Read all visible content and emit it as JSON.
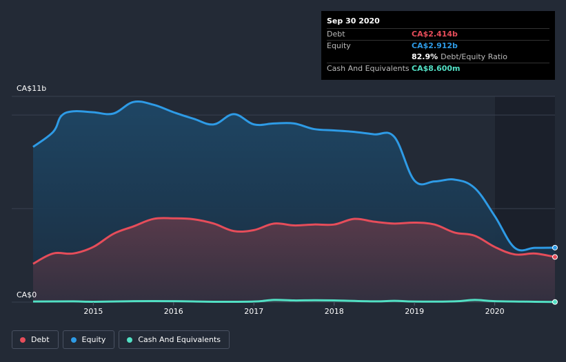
{
  "tooltip": {
    "date": "Sep 30 2020",
    "rows": [
      {
        "label": "Debt",
        "value": "CA$2.414b",
        "color": "#e64d5a"
      },
      {
        "label": "Equity",
        "value": "CA$2.912b",
        "color": "#2e9be6"
      }
    ],
    "ratio_value": "82.9%",
    "ratio_label": "Debt/Equity Ratio",
    "cash": {
      "label": "Cash And Equivalents",
      "value": "CA$8.600m",
      "color": "#52e0c4"
    }
  },
  "legend": [
    {
      "label": "Debt",
      "color": "#e64d5a"
    },
    {
      "label": "Equity",
      "color": "#2e9be6"
    },
    {
      "label": "Cash And Equivalents",
      "color": "#52e0c4"
    }
  ],
  "chart_data": {
    "type": "area",
    "ylabel_top": "CA$11b",
    "ylabel_bottom": "CA$0",
    "ylim": [
      0,
      11
    ],
    "xlim": [
      2014.25,
      2020.75
    ],
    "x_ticks": [
      "2015",
      "2016",
      "2017",
      "2018",
      "2019",
      "2020"
    ],
    "x_tick_values": [
      2015,
      2016,
      2017,
      2018,
      2019,
      2020
    ],
    "grid": true,
    "units": "CA$ billions",
    "series": [
      {
        "name": "Equity",
        "color": "#2e9be6",
        "points": [
          [
            2014.25,
            8.3
          ],
          [
            2014.5,
            9.1
          ],
          [
            2014.6,
            9.95
          ],
          [
            2014.75,
            10.2
          ],
          [
            2015.0,
            10.15
          ],
          [
            2015.25,
            10.08
          ],
          [
            2015.5,
            10.7
          ],
          [
            2015.75,
            10.55
          ],
          [
            2016.0,
            10.15
          ],
          [
            2016.25,
            9.8
          ],
          [
            2016.5,
            9.5
          ],
          [
            2016.75,
            10.05
          ],
          [
            2017.0,
            9.5
          ],
          [
            2017.25,
            9.55
          ],
          [
            2017.5,
            9.55
          ],
          [
            2017.75,
            9.25
          ],
          [
            2018.0,
            9.18
          ],
          [
            2018.25,
            9.1
          ],
          [
            2018.5,
            8.97
          ],
          [
            2018.75,
            8.83
          ],
          [
            2019.0,
            6.5
          ],
          [
            2019.25,
            6.45
          ],
          [
            2019.5,
            6.55
          ],
          [
            2019.75,
            6.1
          ],
          [
            2020.0,
            4.6
          ],
          [
            2020.25,
            2.9
          ],
          [
            2020.5,
            2.9
          ],
          [
            2020.75,
            2.912
          ]
        ]
      },
      {
        "name": "Debt",
        "color": "#e64d5a",
        "points": [
          [
            2014.25,
            2.05
          ],
          [
            2014.5,
            2.6
          ],
          [
            2014.75,
            2.6
          ],
          [
            2015.0,
            2.95
          ],
          [
            2015.25,
            3.65
          ],
          [
            2015.5,
            4.05
          ],
          [
            2015.75,
            4.45
          ],
          [
            2016.0,
            4.48
          ],
          [
            2016.25,
            4.43
          ],
          [
            2016.5,
            4.2
          ],
          [
            2016.75,
            3.8
          ],
          [
            2017.0,
            3.85
          ],
          [
            2017.25,
            4.2
          ],
          [
            2017.5,
            4.1
          ],
          [
            2017.75,
            4.15
          ],
          [
            2018.0,
            4.15
          ],
          [
            2018.25,
            4.45
          ],
          [
            2018.5,
            4.3
          ],
          [
            2018.75,
            4.2
          ],
          [
            2019.0,
            4.25
          ],
          [
            2019.25,
            4.15
          ],
          [
            2019.5,
            3.72
          ],
          [
            2019.75,
            3.55
          ],
          [
            2020.0,
            2.95
          ],
          [
            2020.25,
            2.55
          ],
          [
            2020.5,
            2.6
          ],
          [
            2020.75,
            2.414
          ]
        ]
      },
      {
        "name": "Cash And Equivalents",
        "color": "#52e0c4",
        "points": [
          [
            2014.25,
            0.03
          ],
          [
            2014.75,
            0.04
          ],
          [
            2015.0,
            0.02
          ],
          [
            2015.5,
            0.05
          ],
          [
            2016.0,
            0.05
          ],
          [
            2016.5,
            0.02
          ],
          [
            2017.0,
            0.03
          ],
          [
            2017.25,
            0.12
          ],
          [
            2017.5,
            0.09
          ],
          [
            2017.75,
            0.1
          ],
          [
            2018.0,
            0.09
          ],
          [
            2018.5,
            0.04
          ],
          [
            2018.75,
            0.07
          ],
          [
            2019.0,
            0.03
          ],
          [
            2019.5,
            0.04
          ],
          [
            2019.75,
            0.12
          ],
          [
            2020.0,
            0.05
          ],
          [
            2020.5,
            0.02
          ],
          [
            2020.75,
            0.0086
          ]
        ]
      }
    ]
  }
}
